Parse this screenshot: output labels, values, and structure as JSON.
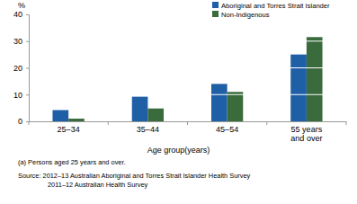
{
  "chart_data": {
    "type": "bar",
    "y_label": "%",
    "x_label": "Age group(years)",
    "categories": [
      "25–34",
      "35–44",
      "45–54",
      "55 years and over"
    ],
    "series": [
      {
        "name": "Aboriginal and Torres Strait Islander",
        "color": "#1f5fa6",
        "values": [
          4.2,
          9.2,
          14,
          25
        ]
      },
      {
        "name": "Non-Indigenous",
        "color": "#3a6b3c",
        "values": [
          1,
          4.8,
          11,
          31.5
        ]
      }
    ],
    "ylim": [
      0,
      40
    ],
    "yticks": [
      0,
      10,
      20,
      30,
      40
    ],
    "grid": true,
    "legend": "top right",
    "footnote": "(a) Persons aged 25 years and over.",
    "source": [
      "Source: 2012–13 Australian Aboriginal and Torres Strait Islander Health Survey",
      "2011–12 Australian Health Survey"
    ]
  }
}
